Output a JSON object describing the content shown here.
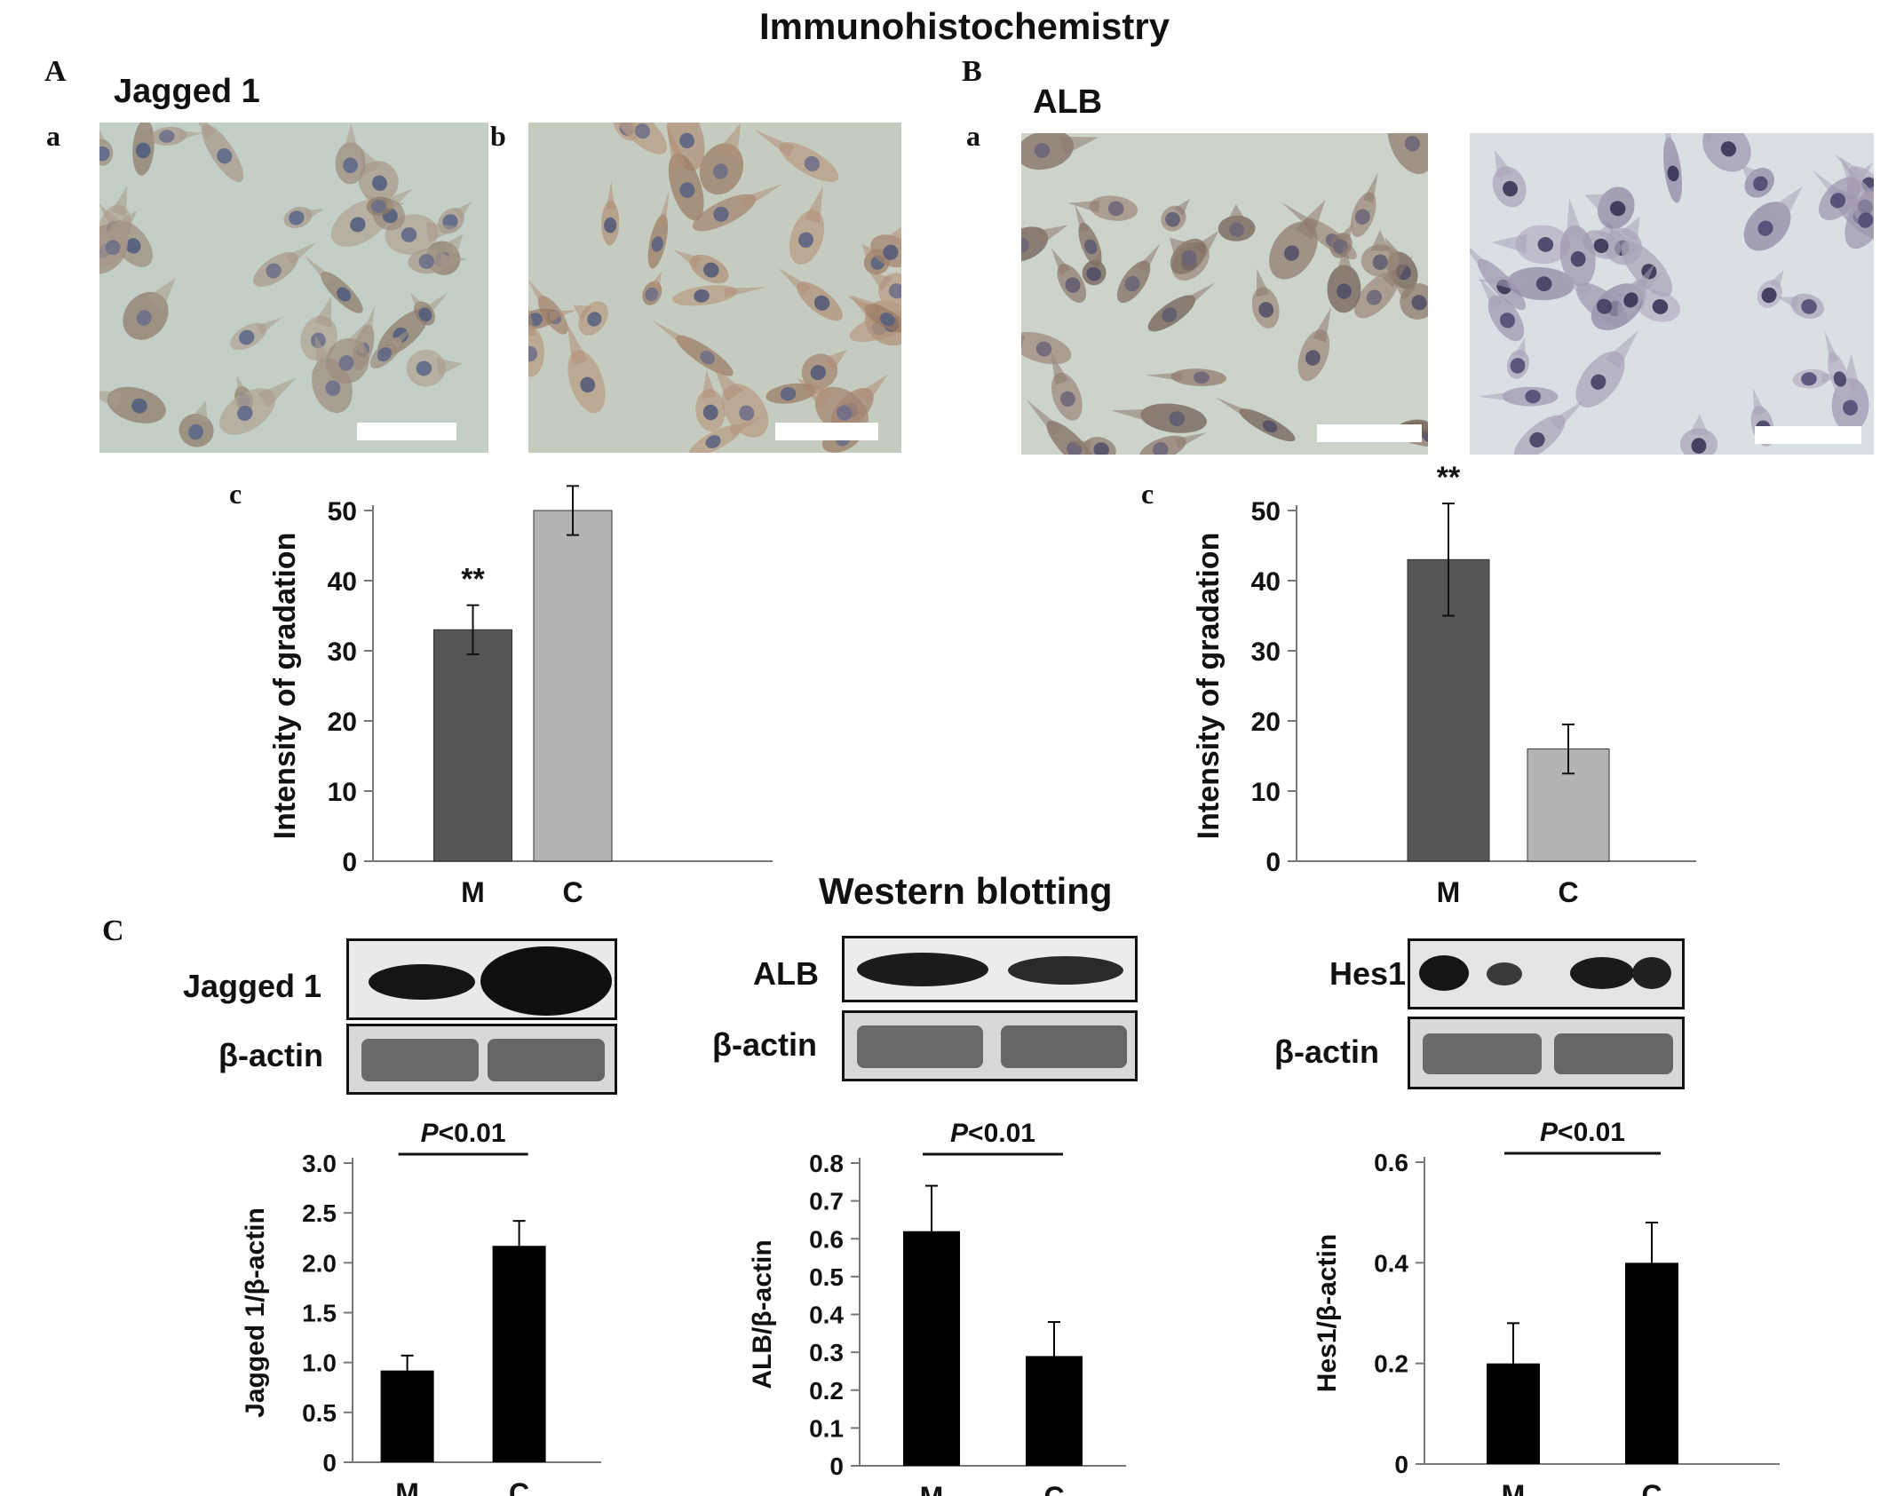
{
  "figure": {
    "ihc_title": "Immunohistochemistry",
    "wb_title": "Western blotting",
    "panel_A": {
      "letter": "A",
      "marker": "Jagged 1",
      "sub_a": "a",
      "sub_b": "b",
      "sub_c": "c"
    },
    "panel_B": {
      "letter": "B",
      "marker": "ALB",
      "sub_a": "a",
      "sub_c": "c"
    },
    "panel_C": {
      "letter": "C"
    },
    "blots": [
      {
        "marker": "Jagged 1",
        "control": "β-actin"
      },
      {
        "marker": "ALB",
        "control": "β-actin"
      },
      {
        "marker": "Hes1",
        "control": "β-actin"
      }
    ],
    "colors": {
      "M_gray": "#555555",
      "C_gray": "#b4b4b4",
      "wb_bar": "#000000",
      "stain_brown": "#8a6a55",
      "nucleus_blue": "#5a6588"
    }
  },
  "chart_data": [
    {
      "type": "bar",
      "id": "A-c",
      "categories": [
        "M",
        "C"
      ],
      "values": [
        33,
        50
      ],
      "errors": [
        3.5,
        3.5
      ],
      "ylabel": "Intensity of gradation",
      "ylim": [
        0,
        50
      ],
      "yticks": [
        "0",
        "10",
        "20",
        "30",
        "40",
        "50"
      ],
      "annotations": [
        {
          "category": "M",
          "text": "**"
        }
      ],
      "colors": [
        "#555555",
        "#b4b4b4"
      ]
    },
    {
      "type": "bar",
      "id": "B-c",
      "categories": [
        "M",
        "C"
      ],
      "values": [
        43,
        16
      ],
      "errors": [
        8,
        3.5
      ],
      "ylabel": "Intensity of gradation",
      "ylim": [
        0,
        50
      ],
      "yticks": [
        "0",
        "10",
        "20",
        "30",
        "40",
        "50"
      ],
      "annotations": [
        {
          "category": "M",
          "text": "**"
        }
      ],
      "colors": [
        "#555555",
        "#b4b4b4"
      ]
    },
    {
      "type": "bar",
      "id": "C-jagged",
      "categories": [
        "M",
        "C"
      ],
      "values": [
        0.92,
        2.17
      ],
      "errors": [
        0.15,
        0.25
      ],
      "ylabel": "Jagged 1/β-actin",
      "ylim": [
        0,
        3.0
      ],
      "yticks": [
        "0",
        "0.5",
        "1.0",
        "1.5",
        "2.0",
        "2.5",
        "3.0"
      ],
      "significance": {
        "label": "P",
        "rest": "<0.01"
      },
      "colors": [
        "#000000",
        "#000000"
      ]
    },
    {
      "type": "bar",
      "id": "C-alb",
      "categories": [
        "M",
        "C"
      ],
      "values": [
        0.62,
        0.29
      ],
      "errors": [
        0.12,
        0.09
      ],
      "ylabel": "ALB/β-actin",
      "ylim": [
        0,
        0.8
      ],
      "yticks": [
        "0",
        "0.1",
        "0.2",
        "0.3",
        "0.4",
        "0.5",
        "0.6",
        "0.7",
        "0.8"
      ],
      "significance": {
        "label": "P",
        "rest": "<0.01"
      },
      "colors": [
        "#000000",
        "#000000"
      ]
    },
    {
      "type": "bar",
      "id": "C-hes1",
      "categories": [
        "M",
        "C"
      ],
      "values": [
        0.2,
        0.4
      ],
      "errors": [
        0.08,
        0.08
      ],
      "ylabel": "Hes1/β-actin",
      "ylim": [
        0,
        0.6
      ],
      "yticks": [
        "0",
        "0.2",
        "0.4",
        "0.6"
      ],
      "significance": {
        "label": "P",
        "rest": "<0.01"
      },
      "colors": [
        "#000000",
        "#000000"
      ]
    }
  ]
}
